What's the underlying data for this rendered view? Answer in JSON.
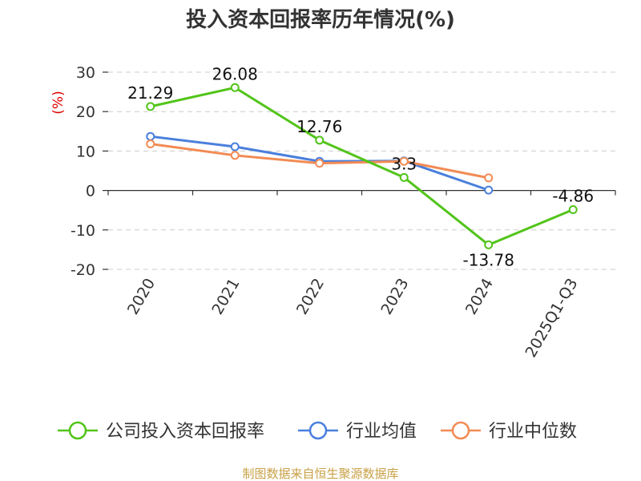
{
  "chart_data": {
    "type": "line",
    "title": "投入资本回报率历年情况(%)",
    "ylabel": "(%)",
    "xlabel": "",
    "categories": [
      "2020",
      "2021",
      "2022",
      "2023",
      "2024",
      "2025Q1-Q3"
    ],
    "ylim": [
      -20,
      30
    ],
    "yticks": [
      30,
      20,
      10,
      0,
      -10,
      -20
    ],
    "grid": true,
    "legend_position": "bottom",
    "series": [
      {
        "name": "公司投入资本回报率",
        "color": "#52c41a",
        "values": [
          21.29,
          26.08,
          12.76,
          3.3,
          -13.78,
          -4.86
        ],
        "labels": [
          "21.29",
          "26.08",
          "12.76",
          "3.3",
          "-13.78",
          "-4.86"
        ]
      },
      {
        "name": "行业均值",
        "color": "#4a7fdc",
        "values": [
          13.7,
          11.1,
          7.4,
          7.5,
          0.1,
          null
        ]
      },
      {
        "name": "行业中位数",
        "color": "#f28b54",
        "values": [
          11.8,
          8.9,
          6.9,
          7.4,
          3.2,
          null
        ]
      }
    ]
  },
  "source": "制图数据来自恒生聚源数据库"
}
